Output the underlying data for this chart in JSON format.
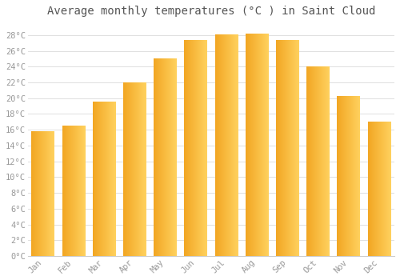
{
  "title": "Average monthly temperatures (°C ) in Saint Cloud",
  "months": [
    "Jan",
    "Feb",
    "Mar",
    "Apr",
    "May",
    "Jun",
    "Jul",
    "Aug",
    "Sep",
    "Oct",
    "Nov",
    "Dec"
  ],
  "values": [
    15.8,
    16.5,
    19.5,
    22.0,
    25.0,
    27.3,
    28.0,
    28.1,
    27.3,
    24.0,
    20.2,
    17.0
  ],
  "bar_color_left": "#F5A623",
  "bar_color_right": "#FFD060",
  "yticks": [
    0,
    2,
    4,
    6,
    8,
    10,
    12,
    14,
    16,
    18,
    20,
    22,
    24,
    26,
    28
  ],
  "ylim": [
    0,
    29.5
  ],
  "background_color": "#FFFFFF",
  "grid_color": "#E0E0E0",
  "title_fontsize": 10,
  "tick_fontsize": 7.5,
  "font_family": "monospace",
  "tick_color": "#999999",
  "bar_width": 0.75
}
